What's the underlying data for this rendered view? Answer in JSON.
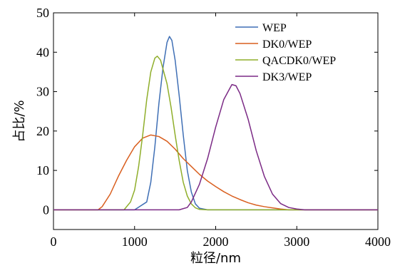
{
  "chart_data": {
    "type": "line",
    "xlabel": "粒径/nm",
    "ylabel": "占比/%",
    "xlim": [
      0,
      4000
    ],
    "ylim": [
      -5,
      50
    ],
    "x_ticks": [
      0,
      1000,
      2000,
      3000,
      4000
    ],
    "y_ticks": [
      0,
      10,
      20,
      30,
      40,
      50
    ],
    "grid": false,
    "legend_position": "top-right",
    "series": [
      {
        "name": "WEP",
        "color": "#3f6fb5",
        "points": [
          [
            0,
            0
          ],
          [
            1000,
            0
          ],
          [
            1150,
            2
          ],
          [
            1200,
            7
          ],
          [
            1250,
            16
          ],
          [
            1300,
            27
          ],
          [
            1350,
            36
          ],
          [
            1400,
            42.5
          ],
          [
            1430,
            44
          ],
          [
            1460,
            43
          ],
          [
            1500,
            38
          ],
          [
            1550,
            29
          ],
          [
            1600,
            19
          ],
          [
            1650,
            10
          ],
          [
            1700,
            4.5
          ],
          [
            1750,
            1.5
          ],
          [
            1800,
            0.4
          ],
          [
            1900,
            0
          ],
          [
            4000,
            0
          ]
        ]
      },
      {
        "name": "DK0/WEP",
        "color": "#d95f1f",
        "points": [
          [
            0,
            0
          ],
          [
            550,
            0
          ],
          [
            600,
            0.8
          ],
          [
            700,
            4
          ],
          [
            800,
            8.5
          ],
          [
            900,
            12.5
          ],
          [
            1000,
            16
          ],
          [
            1100,
            18.2
          ],
          [
            1200,
            19
          ],
          [
            1300,
            18.6
          ],
          [
            1400,
            17.4
          ],
          [
            1500,
            15.4
          ],
          [
            1600,
            13
          ],
          [
            1700,
            11
          ],
          [
            1800,
            9
          ],
          [
            1900,
            7.3
          ],
          [
            2000,
            5.9
          ],
          [
            2100,
            4.6
          ],
          [
            2200,
            3.5
          ],
          [
            2300,
            2.6
          ],
          [
            2400,
            1.8
          ],
          [
            2500,
            1.2
          ],
          [
            2600,
            0.8
          ],
          [
            2700,
            0.5
          ],
          [
            2800,
            0.2
          ],
          [
            2900,
            0
          ],
          [
            4000,
            0
          ]
        ]
      },
      {
        "name": "QACDK0/WEP",
        "color": "#8fae2a",
        "points": [
          [
            0,
            0
          ],
          [
            870,
            0
          ],
          [
            950,
            2
          ],
          [
            1000,
            5
          ],
          [
            1050,
            11
          ],
          [
            1100,
            19
          ],
          [
            1150,
            28
          ],
          [
            1200,
            35
          ],
          [
            1250,
            38.5
          ],
          [
            1280,
            39
          ],
          [
            1320,
            38
          ],
          [
            1400,
            32
          ],
          [
            1450,
            26
          ],
          [
            1500,
            19
          ],
          [
            1550,
            12.5
          ],
          [
            1600,
            7
          ],
          [
            1650,
            3.5
          ],
          [
            1700,
            1.5
          ],
          [
            1750,
            0.5
          ],
          [
            1800,
            0.1
          ],
          [
            1900,
            0
          ],
          [
            4000,
            0
          ]
        ]
      },
      {
        "name": "DK3/WEP",
        "color": "#7b2a85",
        "points": [
          [
            0,
            0
          ],
          [
            1550,
            0
          ],
          [
            1650,
            0.6
          ],
          [
            1700,
            2
          ],
          [
            1800,
            6.5
          ],
          [
            1900,
            13
          ],
          [
            2000,
            21
          ],
          [
            2100,
            28
          ],
          [
            2200,
            31.8
          ],
          [
            2250,
            31.5
          ],
          [
            2300,
            29.5
          ],
          [
            2400,
            23
          ],
          [
            2500,
            15
          ],
          [
            2600,
            8.5
          ],
          [
            2700,
            4
          ],
          [
            2800,
            1.6
          ],
          [
            2900,
            0.6
          ],
          [
            3000,
            0.2
          ],
          [
            3100,
            0
          ],
          [
            4000,
            0
          ]
        ]
      }
    ]
  }
}
